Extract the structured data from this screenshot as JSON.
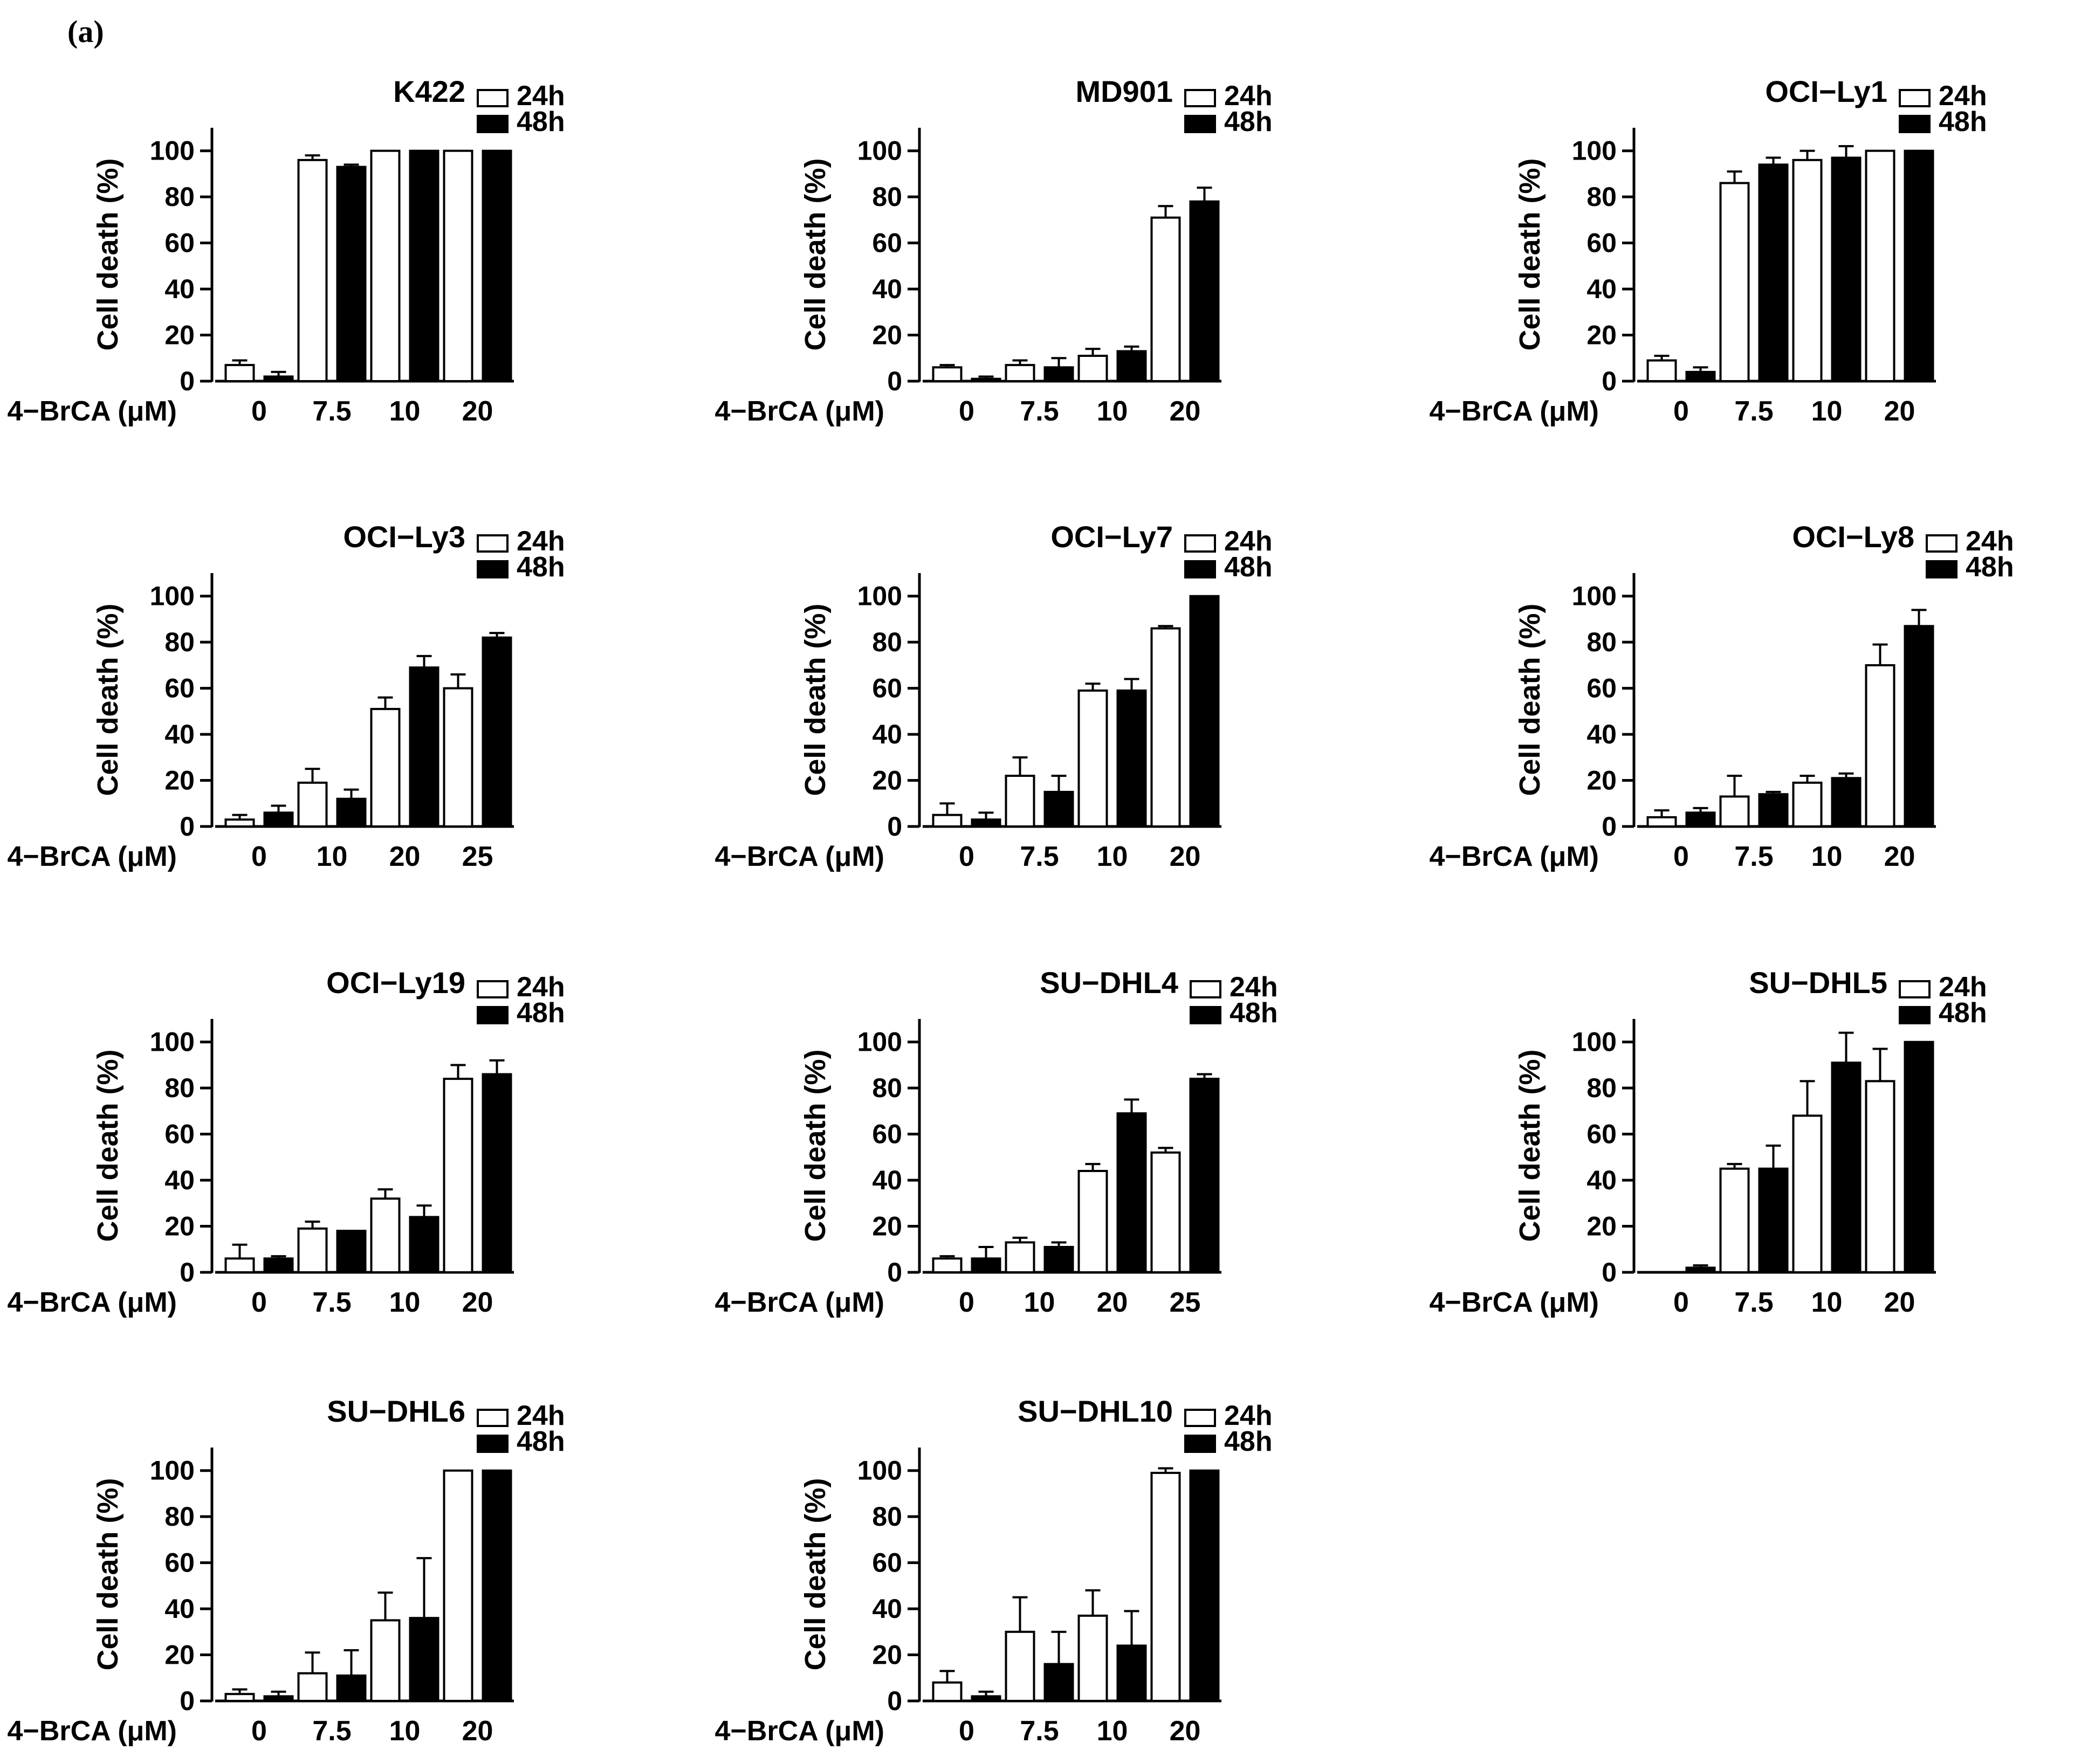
{
  "figure": {
    "panel_label": "(a)",
    "ylabel": "Cell death (%)",
    "xlabel": "4−BrCA (μM)",
    "yticks": [
      "0",
      "20",
      "40",
      "60",
      "80",
      "100"
    ],
    "legend_24": "24h",
    "legend_48": "48h"
  },
  "colors": {
    "series_24h_fill": "#ffffff",
    "series_48h_fill": "#000000",
    "axis": "#000000"
  },
  "chart_data": [
    {
      "type": "bar",
      "title": "K422",
      "categories": [
        "0",
        "7.5",
        "10",
        "20"
      ],
      "ylim": [
        0,
        110
      ],
      "series": [
        {
          "name": "24h",
          "values": [
            7,
            96,
            100,
            100
          ],
          "errors": [
            2,
            2,
            0,
            0
          ]
        },
        {
          "name": "48h",
          "values": [
            2,
            93,
            100,
            100
          ],
          "errors": [
            2,
            1,
            0,
            0
          ]
        }
      ]
    },
    {
      "type": "bar",
      "title": "MD901",
      "categories": [
        "0",
        "7.5",
        "10",
        "20"
      ],
      "ylim": [
        0,
        110
      ],
      "series": [
        {
          "name": "24h",
          "values": [
            6,
            7,
            11,
            71
          ],
          "errors": [
            1,
            2,
            3,
            5
          ]
        },
        {
          "name": "48h",
          "values": [
            1,
            6,
            13,
            78
          ],
          "errors": [
            1,
            4,
            2,
            6
          ]
        }
      ]
    },
    {
      "type": "bar",
      "title": "OCI−Ly1",
      "categories": [
        "0",
        "7.5",
        "10",
        "20"
      ],
      "ylim": [
        0,
        110
      ],
      "series": [
        {
          "name": "24h",
          "values": [
            9,
            86,
            96,
            100
          ],
          "errors": [
            2,
            5,
            4,
            0
          ]
        },
        {
          "name": "48h",
          "values": [
            4,
            94,
            97,
            100
          ],
          "errors": [
            2,
            3,
            5,
            0
          ]
        }
      ]
    },
    {
      "type": "bar",
      "title": "OCI−Ly3",
      "categories": [
        "0",
        "10",
        "20",
        "25"
      ],
      "ylim": [
        0,
        110
      ],
      "series": [
        {
          "name": "24h",
          "values": [
            3,
            19,
            51,
            60
          ],
          "errors": [
            2,
            6,
            5,
            6
          ]
        },
        {
          "name": "48h",
          "values": [
            6,
            12,
            69,
            82
          ],
          "errors": [
            3,
            4,
            5,
            2
          ]
        }
      ]
    },
    {
      "type": "bar",
      "title": "OCI−Ly7",
      "categories": [
        "0",
        "7.5",
        "10",
        "20"
      ],
      "ylim": [
        0,
        110
      ],
      "series": [
        {
          "name": "24h",
          "values": [
            5,
            22,
            59,
            86
          ],
          "errors": [
            5,
            8,
            3,
            1
          ]
        },
        {
          "name": "48h",
          "values": [
            3,
            15,
            59,
            100
          ],
          "errors": [
            3,
            7,
            5,
            0
          ]
        }
      ]
    },
    {
      "type": "bar",
      "title": "OCI−Ly8",
      "categories": [
        "0",
        "7.5",
        "10",
        "20"
      ],
      "ylim": [
        0,
        110
      ],
      "series": [
        {
          "name": "24h",
          "values": [
            4,
            13,
            19,
            70
          ],
          "errors": [
            3,
            9,
            3,
            9
          ]
        },
        {
          "name": "48h",
          "values": [
            6,
            14,
            21,
            87
          ],
          "errors": [
            2,
            1,
            2,
            7
          ]
        }
      ]
    },
    {
      "type": "bar",
      "title": "OCI−Ly19",
      "categories": [
        "0",
        "7.5",
        "10",
        "20"
      ],
      "ylim": [
        0,
        110
      ],
      "series": [
        {
          "name": "24h",
          "values": [
            6,
            19,
            32,
            84
          ],
          "errors": [
            6,
            3,
            4,
            6
          ]
        },
        {
          "name": "48h",
          "values": [
            6,
            18,
            24,
            86
          ],
          "errors": [
            1,
            0,
            5,
            6
          ]
        }
      ]
    },
    {
      "type": "bar",
      "title": "SU−DHL4",
      "categories": [
        "0",
        "10",
        "20",
        "25"
      ],
      "ylim": [
        0,
        110
      ],
      "series": [
        {
          "name": "24h",
          "values": [
            6,
            13,
            44,
            52
          ],
          "errors": [
            1,
            2,
            3,
            2
          ]
        },
        {
          "name": "48h",
          "values": [
            6,
            11,
            69,
            84
          ],
          "errors": [
            5,
            2,
            6,
            2
          ]
        }
      ]
    },
    {
      "type": "bar",
      "title": "SU−DHL5",
      "categories": [
        "0",
        "7.5",
        "10",
        "20"
      ],
      "ylim": [
        0,
        110
      ],
      "series": [
        {
          "name": "24h",
          "values": [
            0,
            45,
            68,
            83
          ],
          "errors": [
            0,
            2,
            15,
            14
          ]
        },
        {
          "name": "48h",
          "values": [
            2,
            45,
            91,
            100
          ],
          "errors": [
            1,
            10,
            13,
            0
          ]
        }
      ]
    },
    {
      "type": "bar",
      "title": "SU−DHL6",
      "categories": [
        "0",
        "7.5",
        "10",
        "20"
      ],
      "ylim": [
        0,
        110
      ],
      "series": [
        {
          "name": "24h",
          "values": [
            3,
            12,
            35,
            100
          ],
          "errors": [
            2,
            9,
            12,
            0
          ]
        },
        {
          "name": "48h",
          "values": [
            2,
            11,
            36,
            100
          ],
          "errors": [
            2,
            11,
            26,
            0
          ]
        }
      ]
    },
    {
      "type": "bar",
      "title": "SU−DHL10",
      "categories": [
        "0",
        "7.5",
        "10",
        "20"
      ],
      "ylim": [
        0,
        110
      ],
      "series": [
        {
          "name": "24h",
          "values": [
            8,
            30,
            37,
            99
          ],
          "errors": [
            5,
            15,
            11,
            2
          ]
        },
        {
          "name": "48h",
          "values": [
            2,
            16,
            24,
            100
          ],
          "errors": [
            2,
            14,
            15,
            0
          ]
        }
      ]
    }
  ]
}
